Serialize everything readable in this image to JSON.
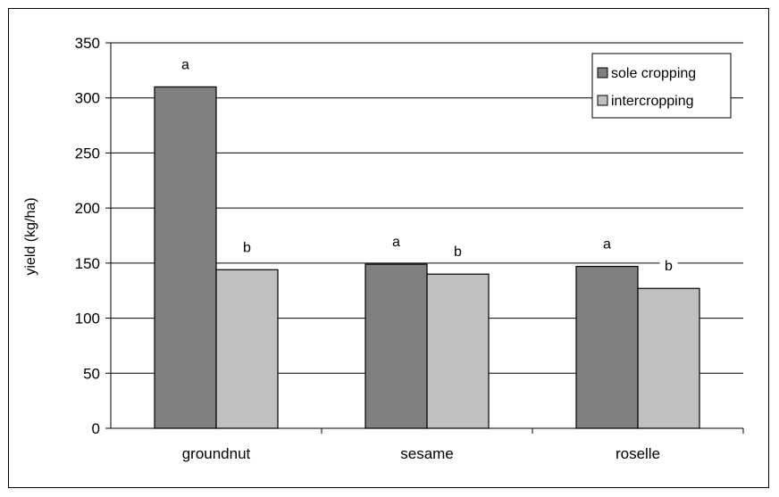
{
  "chart_data": {
    "type": "bar",
    "title": "",
    "xlabel": "",
    "ylabel": "yield (kg/ha)",
    "ylim": [
      0,
      350
    ],
    "yticks": [
      0,
      50,
      100,
      150,
      200,
      250,
      300,
      350
    ],
    "grid": true,
    "legend_position": "top-right",
    "categories": [
      "groundnut",
      "sesame",
      "roselle"
    ],
    "series": [
      {
        "name": "sole cropping",
        "color": "#808080",
        "values": [
          310,
          149,
          147
        ],
        "labels": [
          "a",
          "a",
          "a"
        ]
      },
      {
        "name": "intercropping",
        "color": "#c0c0c0",
        "values": [
          144,
          140,
          127
        ],
        "labels": [
          "b",
          "b",
          "b"
        ]
      }
    ]
  }
}
